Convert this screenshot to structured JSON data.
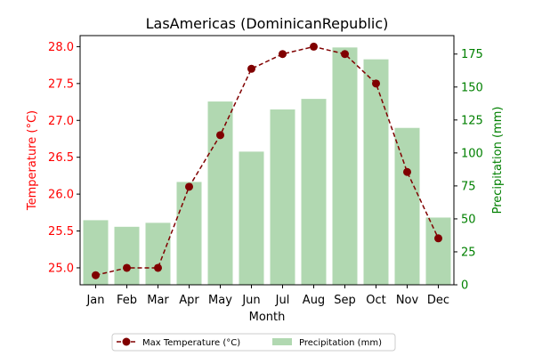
{
  "chart_data": {
    "type": "bar",
    "title": "LasAmericas (DominicanRepublic)",
    "xlabel": "Month",
    "ylabel_left": "Temperature (°C)",
    "ylabel_right": "Precipitation (mm)",
    "categories": [
      "Jan",
      "Feb",
      "Mar",
      "Apr",
      "May",
      "Jun",
      "Jul",
      "Aug",
      "Sep",
      "Oct",
      "Nov",
      "Dec"
    ],
    "series": [
      {
        "name": "Max Temperature (°C)",
        "type": "line",
        "axis": "left",
        "color": "#800000",
        "values": [
          24.9,
          25.0,
          25.0,
          26.1,
          26.8,
          27.7,
          27.9,
          28.0,
          27.9,
          27.5,
          26.3,
          25.4
        ]
      },
      {
        "name": "Precipitation (mm)",
        "type": "bar",
        "axis": "right",
        "color": "#b1d8b1",
        "values": [
          49,
          44,
          47,
          78,
          139,
          101,
          133,
          141,
          180,
          171,
          119,
          51
        ]
      }
    ],
    "ylim_left": [
      24.77,
      28.15
    ],
    "yticks_left": [
      "25.0",
      "25.5",
      "26.0",
      "26.5",
      "27.0",
      "27.5",
      "28.0"
    ],
    "ylim_right": [
      0,
      189
    ],
    "yticks_right": [
      "0",
      "25",
      "50",
      "75",
      "100",
      "125",
      "150",
      "175"
    ],
    "left_axis_color": "#ff0000",
    "right_axis_color": "#008000",
    "grid": false,
    "legend_position": "bottom-center"
  }
}
